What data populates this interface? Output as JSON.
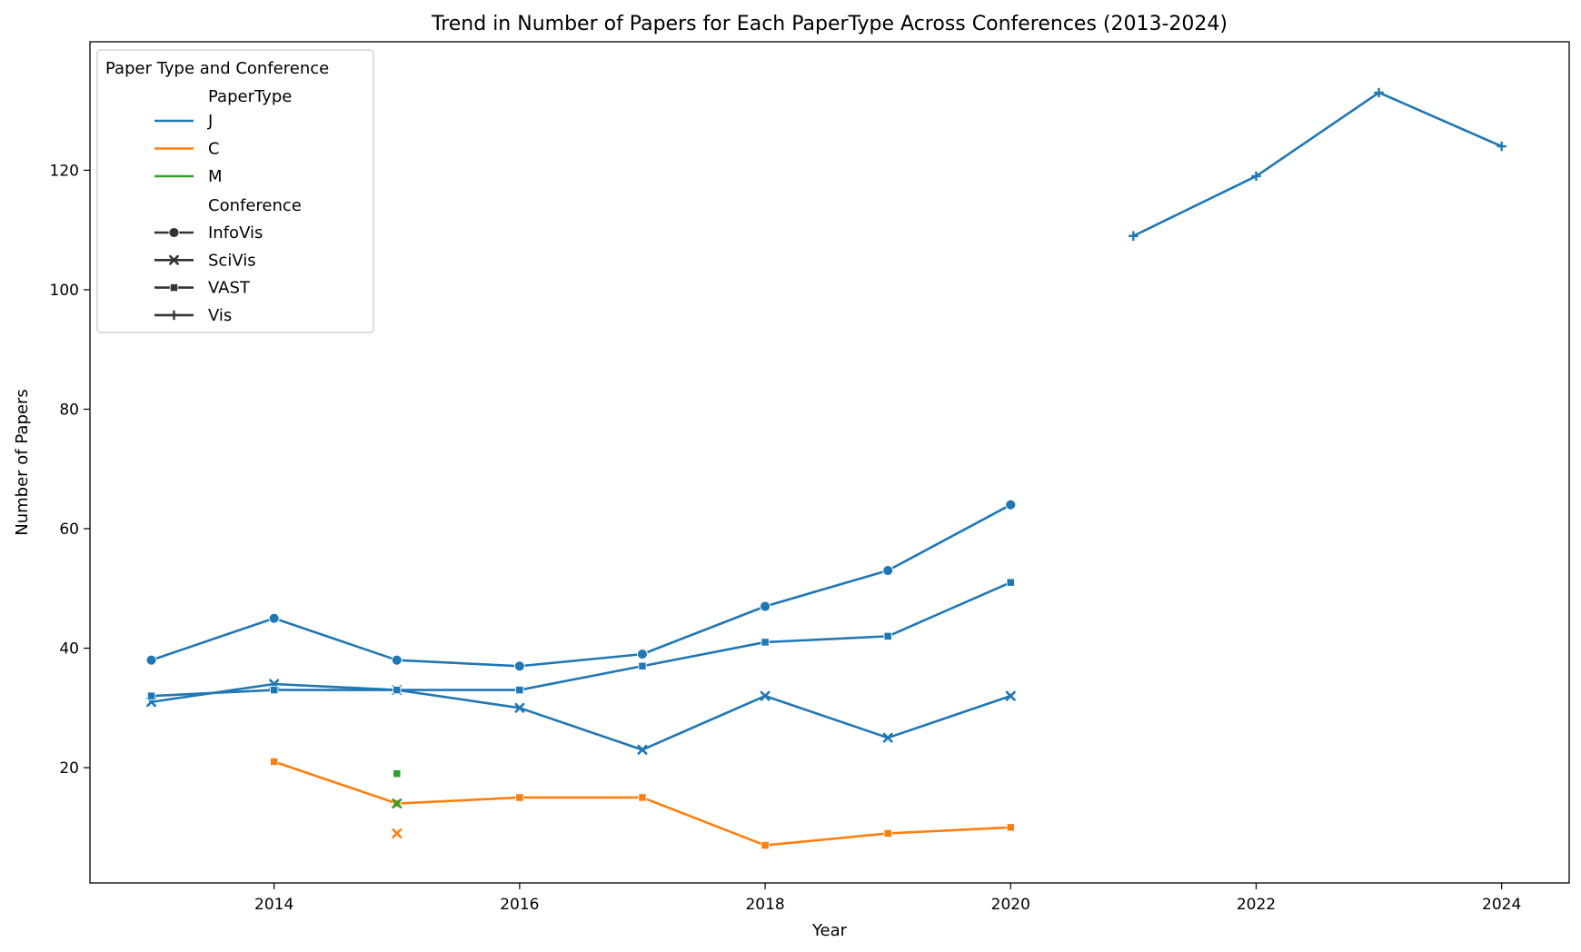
{
  "chart_data": {
    "type": "line",
    "title": "Trend in Number of Papers for Each PaperType Across Conferences (2013-2024)",
    "xlabel": "Year",
    "ylabel": "Number of Papers",
    "xlim": [
      2012.5,
      2024.55
    ],
    "ylim": [
      0.7,
      141.5
    ],
    "xticks": [
      2014,
      2016,
      2018,
      2020,
      2022,
      2024
    ],
    "yticks": [
      20,
      40,
      60,
      80,
      100,
      120
    ],
    "grid": false,
    "legend": {
      "placement": "top-left",
      "title": "Paper Type and Conference",
      "hue_title": "PaperType",
      "hue_entries": [
        {
          "label": "J",
          "color": "#1f77b4"
        },
        {
          "label": "C",
          "color": "#ff7f0e"
        },
        {
          "label": "M",
          "color": "#2ca02c"
        }
      ],
      "style_title": "Conference",
      "style_entries": [
        {
          "label": "InfoVis",
          "marker": "circle"
        },
        {
          "label": "SciVis",
          "marker": "x"
        },
        {
          "label": "VAST",
          "marker": "square"
        },
        {
          "label": "Vis",
          "marker": "plus"
        }
      ]
    },
    "series": [
      {
        "paper_type": "J",
        "conference": "InfoVis",
        "color": "#1f77b4",
        "marker": "circle",
        "x": [
          2013,
          2014,
          2015,
          2016,
          2017,
          2018,
          2019,
          2020
        ],
        "y": [
          38,
          45,
          38,
          37,
          39,
          47,
          53,
          64
        ]
      },
      {
        "paper_type": "J",
        "conference": "SciVis",
        "color": "#1f77b4",
        "marker": "x",
        "x": [
          2013,
          2014,
          2015,
          2016,
          2017,
          2018,
          2019,
          2020
        ],
        "y": [
          31,
          34,
          33,
          30,
          23,
          32,
          25,
          32
        ]
      },
      {
        "paper_type": "J",
        "conference": "VAST",
        "color": "#1f77b4",
        "marker": "square",
        "x": [
          2013,
          2014,
          2015,
          2016,
          2017,
          2018,
          2019,
          2020
        ],
        "y": [
          32,
          33,
          33,
          33,
          37,
          41,
          42,
          51
        ]
      },
      {
        "paper_type": "J",
        "conference": "Vis",
        "color": "#1f77b4",
        "marker": "plus",
        "x": [
          2021,
          2022,
          2023,
          2024
        ],
        "y": [
          109,
          119,
          133,
          124
        ]
      },
      {
        "paper_type": "C",
        "conference": "SciVis",
        "color": "#ff7f0e",
        "marker": "x",
        "x": [
          2015
        ],
        "y": [
          9
        ]
      },
      {
        "paper_type": "C",
        "conference": "VAST",
        "color": "#ff7f0e",
        "marker": "square",
        "x": [
          2014,
          2015,
          2016,
          2017,
          2018,
          2019,
          2020
        ],
        "y": [
          21,
          14,
          15,
          15,
          7,
          9,
          10
        ]
      },
      {
        "paper_type": "M",
        "conference": "SciVis",
        "color": "#2ca02c",
        "marker": "x",
        "x": [
          2015
        ],
        "y": [
          14
        ]
      },
      {
        "paper_type": "M",
        "conference": "VAST",
        "color": "#2ca02c",
        "marker": "square",
        "x": [
          2015
        ],
        "y": [
          19
        ]
      }
    ]
  }
}
